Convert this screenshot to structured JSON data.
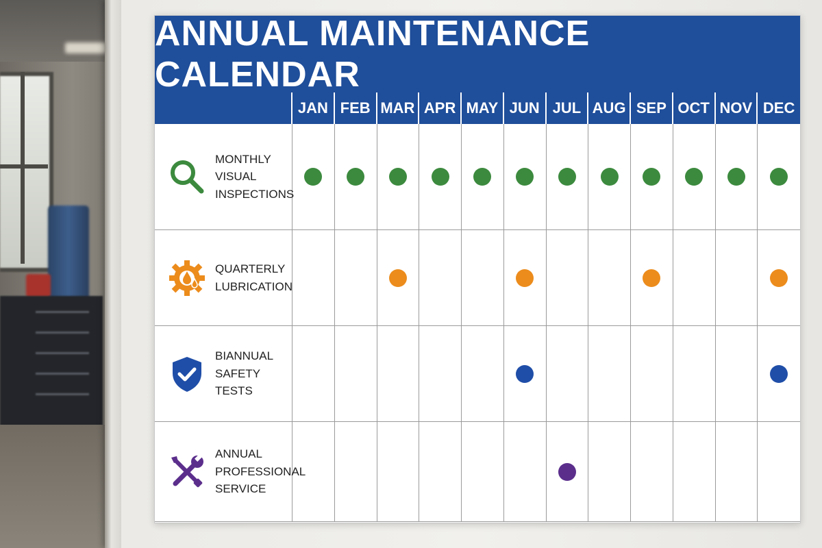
{
  "calendar": {
    "title": "ANNUAL MAINTENANCE CALENDAR",
    "months": [
      "JAN",
      "FEB",
      "MAR",
      "APR",
      "MAY",
      "JUN",
      "JUL",
      "AUG",
      "SEP",
      "OCT",
      "NOV",
      "DEC"
    ],
    "header_color": "#1f4e9a",
    "tasks": [
      {
        "label": "MONTHLY\nVISUAL\nINSPECTIONS",
        "icon": "magnifier-icon",
        "color": "#3c8a3e",
        "months": [
          "JAN",
          "FEB",
          "MAR",
          "APR",
          "MAY",
          "JUN",
          "JUL",
          "AUG",
          "SEP",
          "OCT",
          "NOV",
          "DEC"
        ]
      },
      {
        "label": "QUARTERLY\nLUBRICATION",
        "icon": "gear-oil-drop-icon",
        "color": "#ec8c1c",
        "months": [
          "MAR",
          "JUN",
          "SEP",
          "DEC"
        ]
      },
      {
        "label": "BIANNUAL\nSAFETY TESTS",
        "icon": "shield-check-icon",
        "color": "#1f4ea8",
        "months": [
          "JUN",
          "DEC"
        ]
      },
      {
        "label": "ANNUAL\nPROFESSIONAL\nSERVICE",
        "icon": "wrench-screwdriver-icon",
        "color": "#5b2e8c",
        "months": [
          "JUL"
        ]
      }
    ]
  }
}
